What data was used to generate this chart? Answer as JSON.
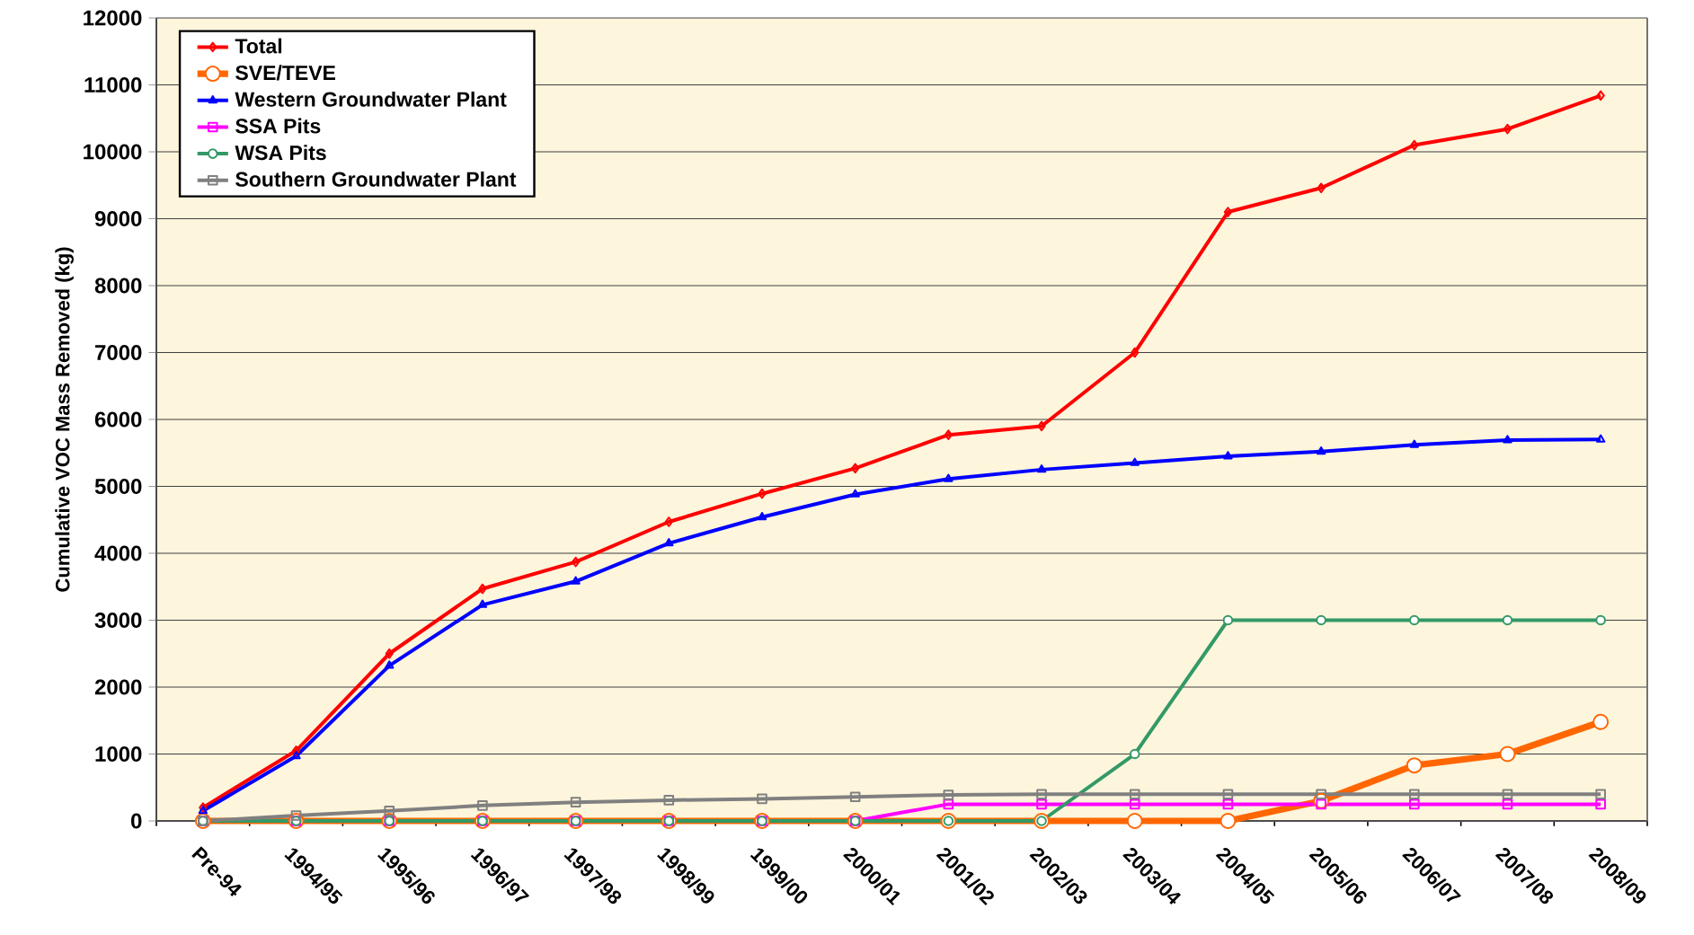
{
  "chart_data": {
    "type": "line",
    "ylabel": "Cumulative VOC Mass Removed (kg)",
    "categories": [
      "Pre-94",
      "1994/95",
      "1995/96",
      "1996/97",
      "1997/98",
      "1998/99",
      "1999/00",
      "2000/01",
      "2001/02",
      "2002/03",
      "2003/04",
      "2004/05",
      "2005/06",
      "2006/07",
      "2007/08",
      "2008/09"
    ],
    "series": [
      {
        "name": "Total",
        "color": "#ff0000",
        "marker": "diamond",
        "values": [
          200,
          1050,
          2500,
          3470,
          3870,
          4470,
          4890,
          5270,
          5770,
          5900,
          7000,
          9100,
          9460,
          10100,
          10340,
          10840
        ]
      },
      {
        "name": "SVE/TEVE",
        "color": "#ff6600",
        "marker": "circle",
        "values": [
          0,
          0,
          0,
          0,
          0,
          0,
          0,
          0,
          0,
          0,
          0,
          0,
          300,
          830,
          1000,
          1480
        ]
      },
      {
        "name": "Western Groundwater Plant",
        "color": "#0000ff",
        "marker": "triangle",
        "values": [
          150,
          970,
          2320,
          3230,
          3580,
          4150,
          4540,
          4880,
          5110,
          5250,
          5350,
          5450,
          5520,
          5620,
          5690,
          5700
        ]
      },
      {
        "name": "SSA Pits",
        "color": "#ff00ff",
        "marker": "square",
        "values": [
          0,
          0,
          0,
          0,
          0,
          0,
          0,
          0,
          250,
          250,
          250,
          250,
          250,
          250,
          250,
          250
        ]
      },
      {
        "name": "WSA Pits",
        "color": "#339966",
        "marker": "circle",
        "values": [
          0,
          0,
          0,
          0,
          0,
          0,
          0,
          0,
          0,
          0,
          1000,
          3000,
          3000,
          3000,
          3000,
          3000
        ]
      },
      {
        "name": "Southern Groundwater Plant",
        "color": "#808080",
        "marker": "square",
        "values": [
          0,
          80,
          150,
          230,
          280,
          310,
          330,
          360,
          390,
          400,
          400,
          400,
          400,
          400,
          400,
          400
        ]
      }
    ],
    "ylim": [
      0,
      12000
    ],
    "yticks": [
      0,
      1000,
      2000,
      3000,
      4000,
      5000,
      6000,
      7000,
      8000,
      9000,
      10000,
      11000,
      12000
    ],
    "grid": "y",
    "legend": "top left",
    "line_style": "solid"
  }
}
